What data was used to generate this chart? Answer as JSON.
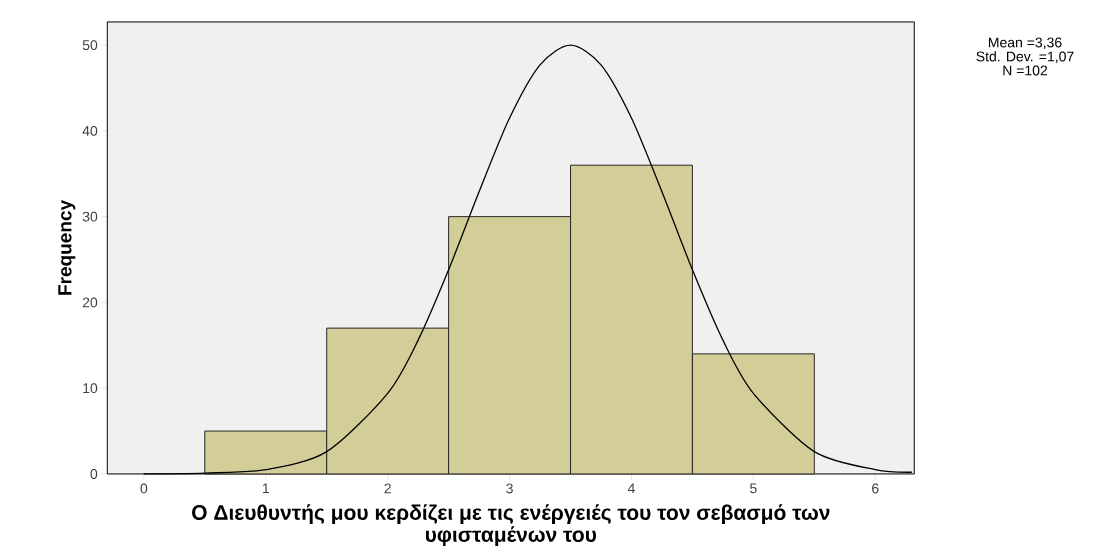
{
  "chart_data": {
    "type": "histogram",
    "xlabel": "Ο Διευθυντής μου κερδίζει με τις ενέργειές του τον σεβασμό των υφισταμένων του",
    "ylabel": "Frequency",
    "bins": [
      0.5,
      1.5,
      2.5,
      3.5,
      4.5,
      5.5
    ],
    "values": [
      5,
      17,
      30,
      36,
      14
    ],
    "color": "#d3ce97",
    "series": [
      {
        "type": "line",
        "color": "#000000",
        "x": [
          0,
          0.5,
          1,
          1.5,
          2,
          2.25,
          2.5,
          2.75,
          3,
          3.25,
          3.5,
          3.75,
          4,
          4.25,
          4.5,
          4.75,
          5,
          5.5,
          6,
          6.3
        ],
        "values": [
          0,
          0.1,
          0.5,
          2.6,
          9.4,
          15.6,
          23.8,
          32.9,
          41.5,
          47.7,
          50,
          47.7,
          41.5,
          32.9,
          23.8,
          15.6,
          9.4,
          2.6,
          0.5,
          0.2
        ]
      }
    ],
    "xlim": [
      -0.3,
      6.32
    ],
    "ylim": [
      0,
      52.7
    ],
    "xticks": [
      0,
      1,
      2,
      3,
      4,
      5,
      6
    ],
    "yticks": [
      0,
      10,
      20,
      30,
      40,
      50
    ],
    "annotations": [
      "Mean =3,36",
      "Std. Dev. =1,07",
      "N =102"
    ],
    "grid": false
  }
}
